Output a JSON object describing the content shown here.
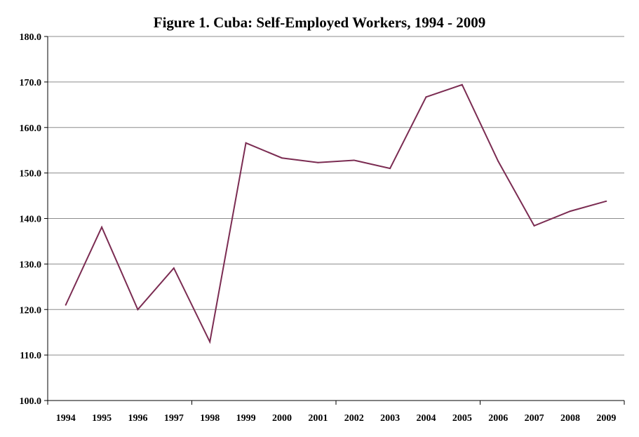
{
  "chart_data": {
    "type": "line",
    "title": "Figure 1. Cuba: Self-Employed Workers, 1994 - 2009",
    "xlabel": "",
    "ylabel": "",
    "categories": [
      "1994",
      "1995",
      "1996",
      "1997",
      "1998",
      "1999",
      "2000",
      "2001",
      "2002",
      "2003",
      "2004",
      "2005",
      "2006",
      "2007",
      "2008",
      "2009"
    ],
    "series": [
      {
        "values": [
          121.0,
          138.1,
          120.0,
          129.1,
          112.9,
          156.6,
          153.3,
          152.3,
          152.8,
          151.0,
          166.7,
          169.4,
          152.6,
          138.4,
          141.6,
          143.8
        ]
      }
    ],
    "ylim": [
      100,
      180
    ],
    "yticks": [
      "100.0",
      "110.0",
      "120.0",
      "130.0",
      "140.0",
      "150.0",
      "160.0",
      "170.0",
      "180.0"
    ],
    "grid": true,
    "legend": "none",
    "line_color": "#7b2c52",
    "grid_color": "#8c8c8c"
  }
}
